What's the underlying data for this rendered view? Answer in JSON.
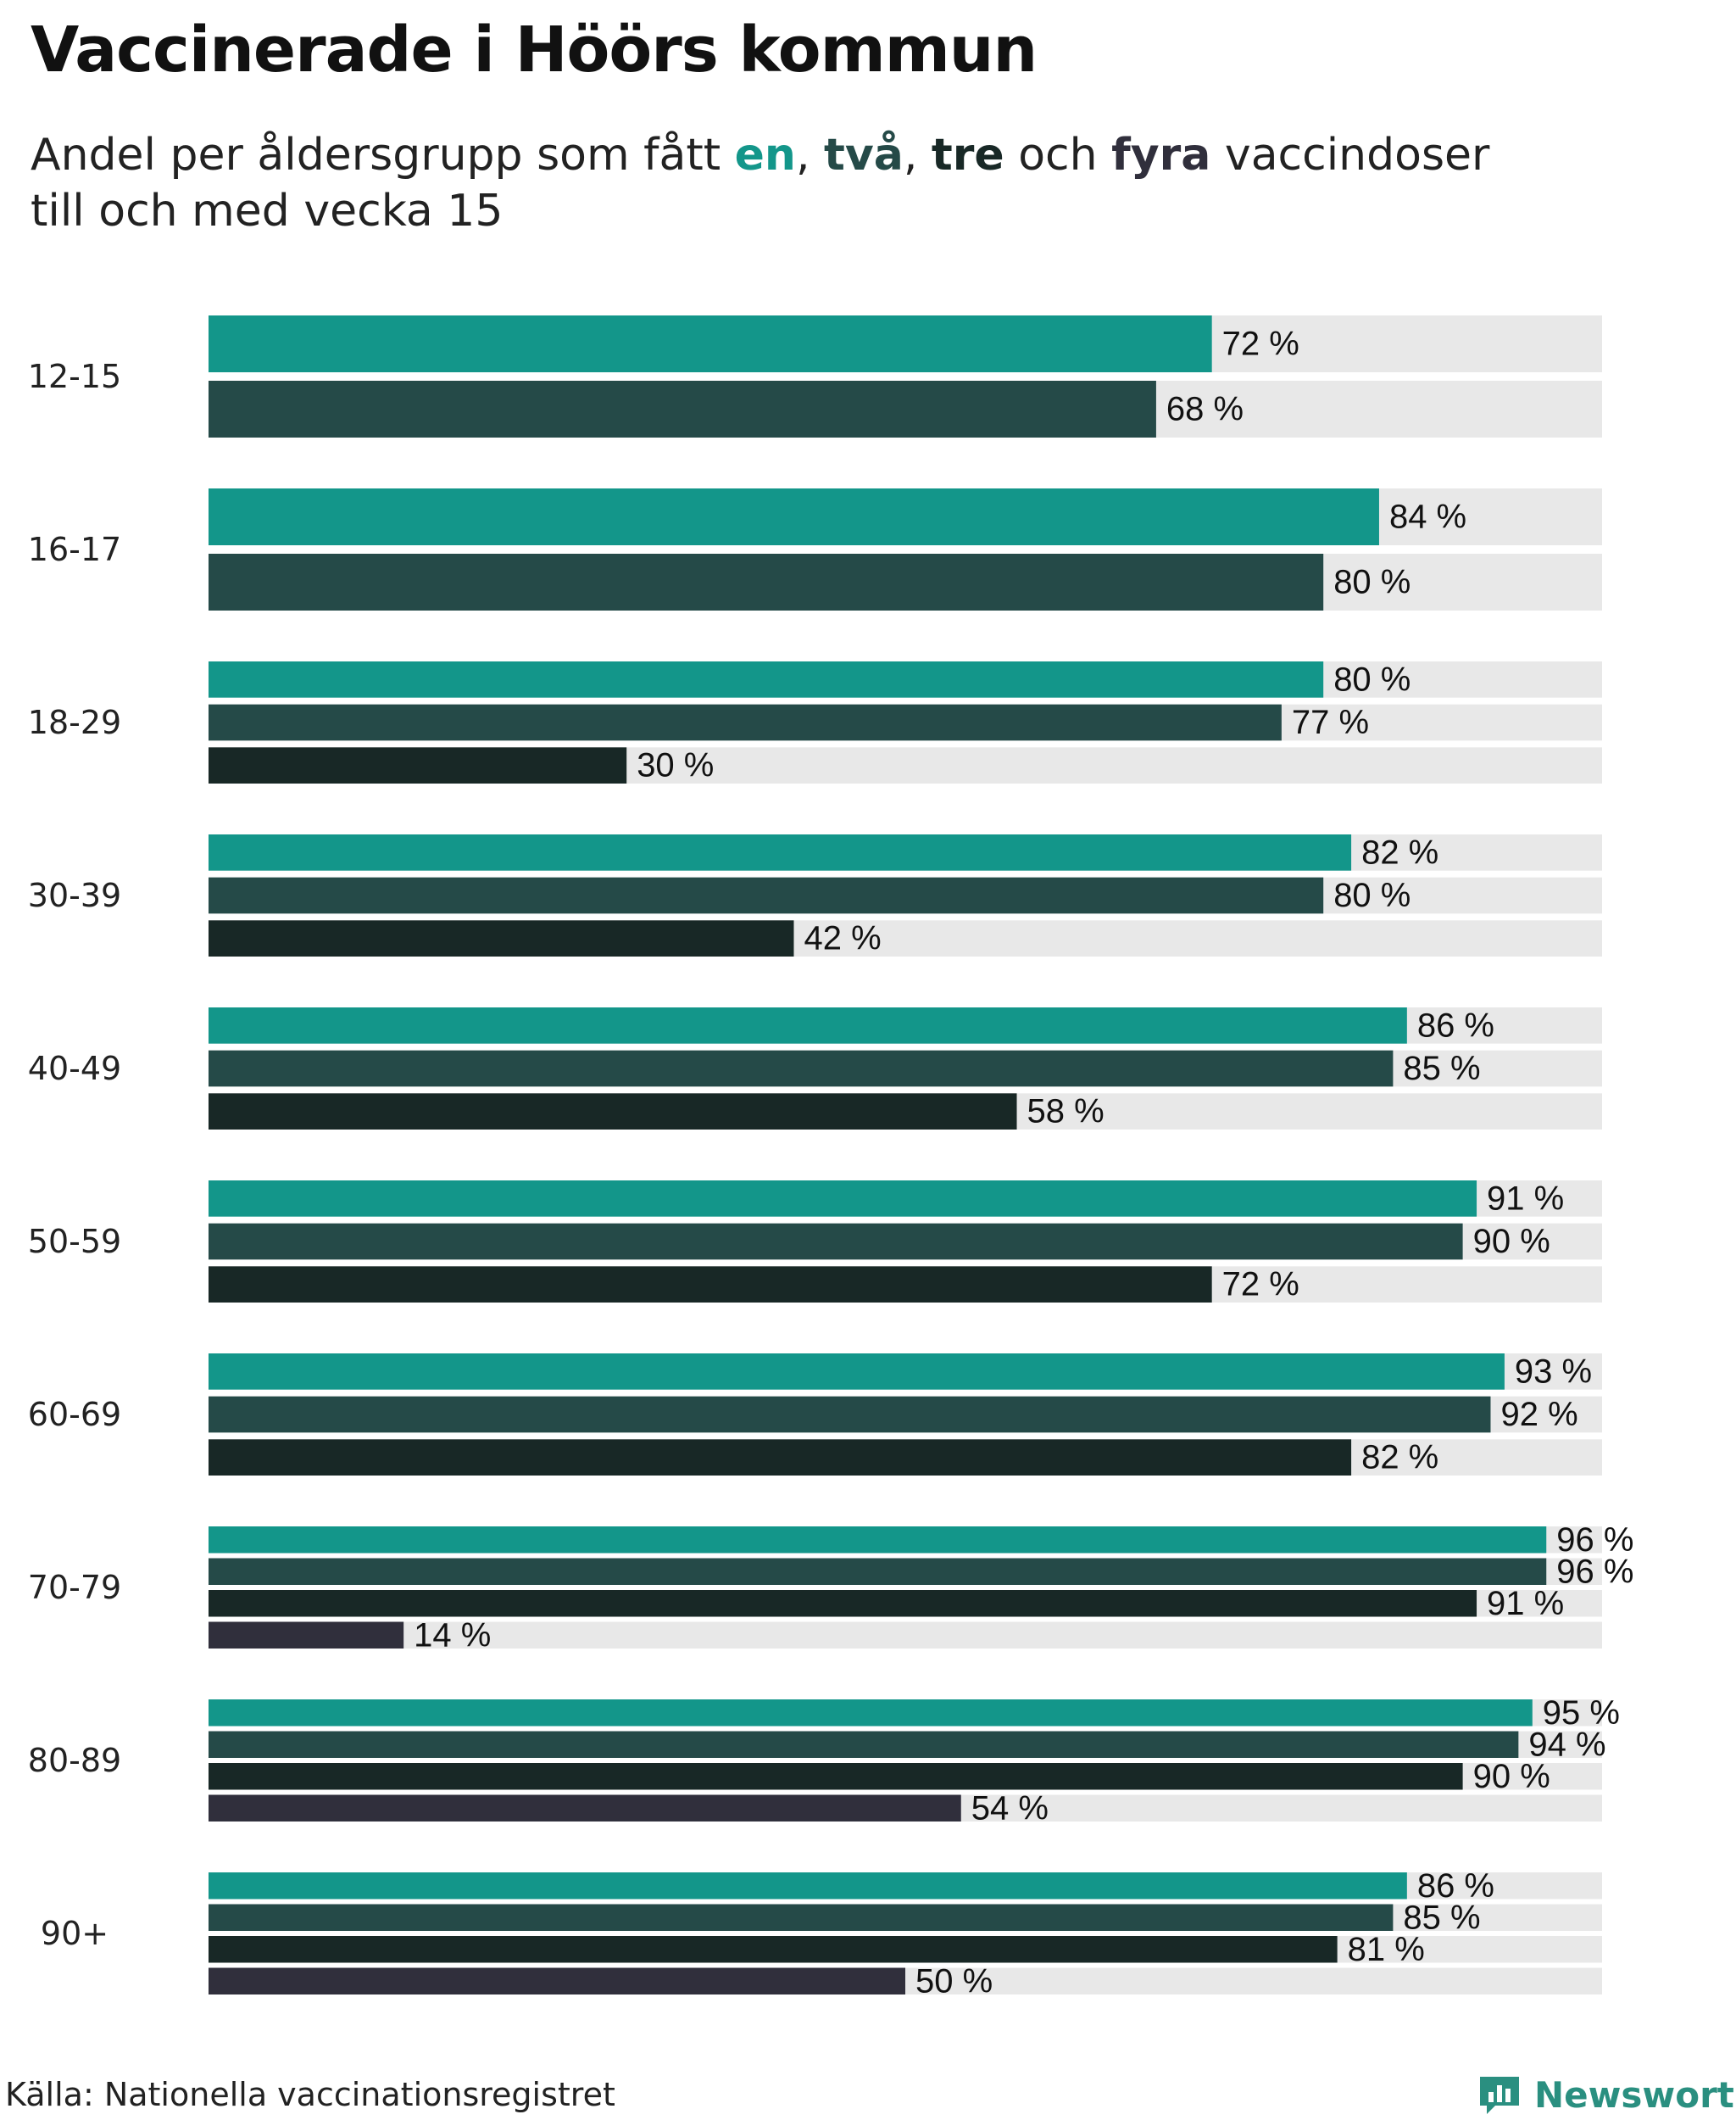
{
  "header": {
    "title": "Vaccinerade i Höörs kommun",
    "subtitle_parts": [
      "Andel per åldersgrupp som fått ",
      "en",
      ", ",
      "två",
      ", ",
      "tre",
      " och ",
      "fyra",
      " vaccindoser"
    ],
    "subtitle_line2": "till och med vecka 15"
  },
  "footer": {
    "source": "Källa: Nationella vaccinationsregistret",
    "brand": "Newsworthy",
    "brand_icon": "newsworthy-logo-icon"
  },
  "colors": {
    "dose1": "#13968a",
    "dose2": "#254a48",
    "dose3": "#182826",
    "dose4": "#302f3c",
    "track": "#e8e8e8",
    "brand": "#2a8f80"
  },
  "chart_data": {
    "type": "bar",
    "orientation": "horizontal",
    "xlim": [
      0,
      100
    ],
    "unit": "%",
    "categories": [
      "12-15",
      "16-17",
      "18-29",
      "30-39",
      "40-49",
      "50-59",
      "60-69",
      "70-79",
      "80-89",
      "90+"
    ],
    "series": [
      {
        "name": "en",
        "values": [
          72,
          84,
          80,
          82,
          86,
          91,
          93,
          96,
          95,
          86
        ]
      },
      {
        "name": "två",
        "values": [
          68,
          80,
          77,
          80,
          85,
          90,
          92,
          96,
          94,
          85
        ]
      },
      {
        "name": "tre",
        "values": [
          null,
          null,
          30,
          42,
          58,
          72,
          82,
          91,
          90,
          81
        ]
      },
      {
        "name": "fyra",
        "values": [
          null,
          null,
          null,
          null,
          null,
          null,
          null,
          14,
          54,
          50
        ]
      }
    ],
    "data_labels": [
      [
        "72 %",
        "68 %"
      ],
      [
        "84 %",
        "80 %"
      ],
      [
        "80 %",
        "77 %",
        "30 %"
      ],
      [
        "82 %",
        "80 %",
        "42 %"
      ],
      [
        "86 %",
        "85 %",
        "58 %"
      ],
      [
        "91 %",
        "90 %",
        "72 %"
      ],
      [
        "93 %",
        "92 %",
        "82 %"
      ],
      [
        "96 %",
        "96 %",
        "91 %",
        "14 %"
      ],
      [
        "95 %",
        "94 %",
        "90 %",
        "54 %"
      ],
      [
        "86 %",
        "85 %",
        "81 %",
        "50 %"
      ]
    ]
  }
}
